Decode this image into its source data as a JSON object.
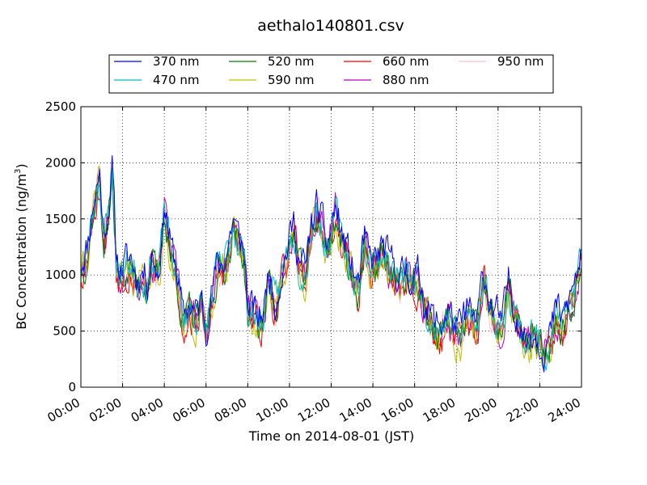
{
  "chart_data": {
    "type": "line",
    "title": "aethalo140801.csv",
    "xlabel": "Time on 2014-08-01 (JST)",
    "ylabel": "BC Concentration (ng/m",
    "ylabel_sup": "3",
    "ylabel_close": ")",
    "xlim": [
      0,
      24
    ],
    "ylim": [
      0,
      2500
    ],
    "x_ticks": [
      0,
      2,
      4,
      6,
      8,
      10,
      12,
      14,
      16,
      18,
      20,
      22,
      24
    ],
    "x_tick_labels": [
      "00:00",
      "02:00",
      "04:00",
      "06:00",
      "08:00",
      "10:00",
      "12:00",
      "14:00",
      "16:00",
      "18:00",
      "20:00",
      "22:00",
      "24:00"
    ],
    "y_ticks": [
      0,
      500,
      1000,
      1500,
      2000,
      2500
    ],
    "y_tick_labels": [
      "0",
      "500",
      "1000",
      "1500",
      "2000",
      "2500"
    ],
    "grid": true,
    "legend_position": "top",
    "x_unit": "hours",
    "anchors": {
      "x": [
        0.0,
        0.3,
        0.6,
        0.9,
        1.1,
        1.3,
        1.5,
        1.7,
        1.9,
        2.1,
        2.4,
        2.7,
        2.9,
        3.2,
        3.4,
        3.7,
        3.9,
        4.0,
        4.3,
        4.6,
        4.9,
        5.2,
        5.5,
        5.8,
        6.0,
        6.2,
        6.5,
        6.8,
        7.0,
        7.3,
        7.5,
        7.7,
        7.9,
        8.0,
        8.2,
        8.5,
        8.8,
        9.0,
        9.3,
        9.6,
        9.9,
        10.2,
        10.5,
        10.8,
        11.0,
        11.3,
        11.5,
        11.8,
        12.0,
        12.2,
        12.5,
        12.8,
        13.0,
        13.3,
        13.6,
        13.9,
        14.2,
        14.5,
        14.8,
        15.0,
        15.3,
        15.6,
        15.9,
        16.2,
        16.5,
        16.8,
        17.0,
        17.3,
        17.6,
        17.9,
        18.2,
        18.5,
        18.8,
        19.0,
        19.3,
        19.6,
        19.9,
        20.2,
        20.5,
        20.8,
        21.0,
        21.3,
        21.6,
        21.9,
        22.2,
        22.5,
        22.8,
        23.1,
        23.4,
        23.7,
        24.0
      ],
      "y": [
        1050,
        1200,
        1600,
        1850,
        1300,
        1500,
        1900,
        1100,
        1000,
        1050,
        1100,
        900,
        1000,
        900,
        1150,
        950,
        1300,
        1600,
        1200,
        1000,
        550,
        700,
        600,
        700,
        450,
        750,
        1000,
        1050,
        1150,
        1450,
        1300,
        1250,
        1000,
        650,
        650,
        550,
        650,
        1000,
        700,
        950,
        1200,
        1400,
        1050,
        1000,
        1350,
        1550,
        1450,
        1200,
        1350,
        1550,
        1300,
        1150,
        1000,
        850,
        1250,
        1050,
        1100,
        1200,
        1050,
        1050,
        900,
        1000,
        900,
        950,
        700,
        600,
        500,
        500,
        650,
        500,
        450,
        650,
        550,
        500,
        1000,
        700,
        600,
        500,
        900,
        650,
        550,
        350,
        450,
        400,
        300,
        400,
        650,
        550,
        700,
        900,
        1100
      ]
    },
    "series": [
      {
        "name": "370 nm",
        "color": "#0000ff",
        "offset": 60,
        "seed": 11
      },
      {
        "name": "470 nm",
        "color": "#00bfbf",
        "offset": 20,
        "seed": 23
      },
      {
        "name": "520 nm",
        "color": "#008000",
        "offset": -20,
        "seed": 37
      },
      {
        "name": "590 nm",
        "color": "#bfbf00",
        "offset": -40,
        "seed": 41
      },
      {
        "name": "660 nm",
        "color": "#ff0000",
        "offset": -40,
        "seed": 53
      },
      {
        "name": "880 nm",
        "color": "#bf00bf",
        "offset": 0,
        "seed": 67
      },
      {
        "name": "950 nm",
        "color": "#ffc0cb",
        "offset": 10,
        "seed": 79
      }
    ]
  }
}
